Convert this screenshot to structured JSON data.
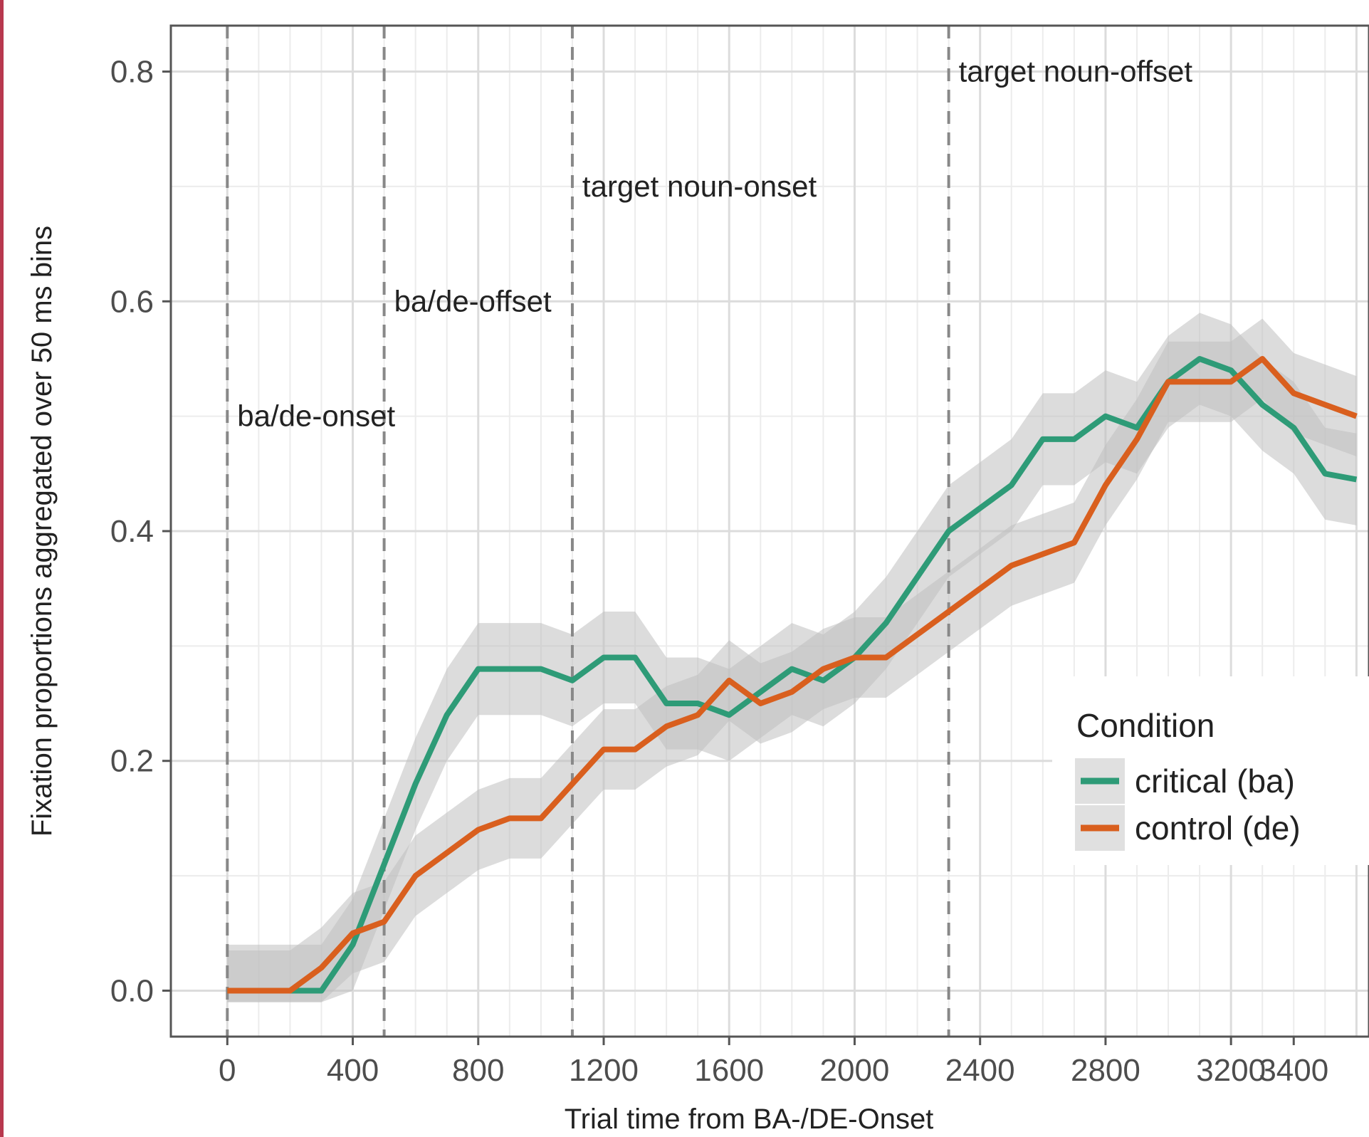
{
  "chart_data": {
    "type": "line",
    "title": "",
    "xlabel": "Trial time from BA-/DE-Onset",
    "ylabel": "Fixation proportions aggregated over 50 ms bins",
    "xlim": [
      -180,
      3640
    ],
    "ylim": [
      -0.04,
      0.84
    ],
    "x_ticks": [
      0,
      400,
      800,
      1200,
      1600,
      2000,
      2400,
      2800,
      3200,
      3400
    ],
    "x_tick_labels": [
      "0",
      "400",
      "800",
      "1200",
      "1600",
      "2000",
      "2400",
      "2800",
      "3200",
      "3400"
    ],
    "y_ticks": [
      0.0,
      0.2,
      0.4,
      0.6,
      0.8
    ],
    "y_tick_labels": [
      "0.0",
      "0.2",
      "0.4",
      "0.6",
      "0.8"
    ],
    "grid": true,
    "legend": {
      "title": "Condition",
      "placement": "right",
      "entries": [
        "critical (ba)",
        "control (de)"
      ]
    },
    "vlines": [
      {
        "x": 0,
        "label": "ba/de-onset",
        "label_y": 0.5
      },
      {
        "x": 500,
        "label": "ba/de-offset",
        "label_y": 0.6
      },
      {
        "x": 1100,
        "label": "target noun-onset",
        "label_y": 0.7
      },
      {
        "x": 2300,
        "label": "target noun-offset",
        "label_y": 0.8
      }
    ],
    "x": [
      0,
      100,
      200,
      300,
      400,
      500,
      600,
      700,
      800,
      900,
      1000,
      1100,
      1200,
      1300,
      1400,
      1500,
      1600,
      1700,
      1800,
      1900,
      2000,
      2100,
      2200,
      2300,
      2400,
      2500,
      2600,
      2700,
      2800,
      2900,
      3000,
      3100,
      3200,
      3300,
      3400,
      3500,
      3600
    ],
    "series": [
      {
        "name": "critical (ba)",
        "color": "#2e9b77",
        "values": [
          0.0,
          0.0,
          0.0,
          0.0,
          0.04,
          0.11,
          0.18,
          0.24,
          0.28,
          0.28,
          0.28,
          0.27,
          0.29,
          0.29,
          0.25,
          0.25,
          0.24,
          0.26,
          0.28,
          0.27,
          0.29,
          0.32,
          0.36,
          0.4,
          0.42,
          0.44,
          0.48,
          0.48,
          0.5,
          0.49,
          0.53,
          0.55,
          0.54,
          0.51,
          0.49,
          0.45,
          0.445
        ],
        "band_width": 0.04
      },
      {
        "name": "control (de)",
        "color": "#d95f1e",
        "values": [
          0.0,
          0.0,
          0.0,
          0.02,
          0.05,
          0.06,
          0.1,
          0.12,
          0.14,
          0.15,
          0.15,
          0.18,
          0.21,
          0.21,
          0.23,
          0.24,
          0.27,
          0.25,
          0.26,
          0.28,
          0.29,
          0.29,
          0.31,
          0.33,
          0.35,
          0.37,
          0.38,
          0.39,
          0.44,
          0.48,
          0.53,
          0.53,
          0.53,
          0.55,
          0.52,
          0.51,
          0.5
        ],
        "band_width": 0.035
      }
    ]
  },
  "colors": {
    "panel_border": "#555555",
    "grid_major": "#dcdcdc",
    "grid_minor": "#ececec",
    "vline": "#888888",
    "band": "#bfbfbf",
    "text": "#222222",
    "tick_text": "#4d4d4d"
  }
}
